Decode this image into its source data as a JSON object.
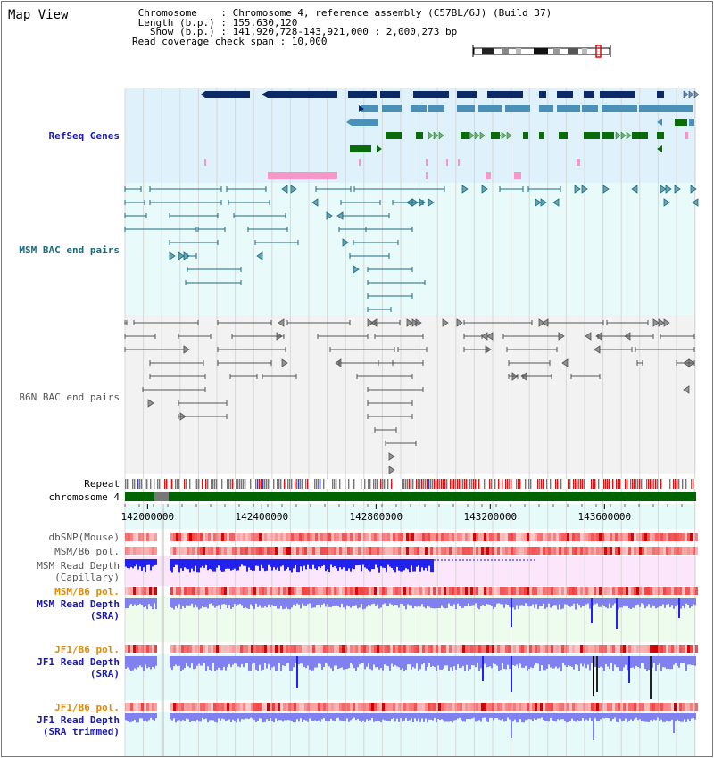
{
  "page": {
    "title": "Map View"
  },
  "header": {
    "lines": [
      " Chromosome    : Chromosome 4, reference assembly (C57BL/6J) (Build 37)",
      " Length (b.p.) : 155,630,120",
      "   Show (b.p.) : 141,920,728-143,921,000 : 2,000,273 bp",
      "Read coverage check span : 10,000"
    ]
  },
  "tracks": {
    "refseq": {
      "label": "RefSeq Genes",
      "color": "#1a1aa6"
    },
    "msm_bac": {
      "label": "MSM BAC end pairs",
      "color": "#1a6b80"
    },
    "b6n_bac": {
      "label": "B6N BAC end pairs",
      "color": "#555555"
    },
    "repeat": {
      "label": "Repeat",
      "color": "#000000"
    },
    "chromosome": {
      "label": "chromosome 4",
      "color": "#000000"
    },
    "dbsnp": {
      "label": "dbSNP(Mouse)",
      "color": "#555555"
    },
    "msm_b6_pol_1": {
      "label": "MSM/B6 pol.",
      "color": "#555555"
    },
    "msm_depth_cap": {
      "label": "MSM Read Depth\n(Capillary)",
      "color": "#555555"
    },
    "msm_b6_pol_2": {
      "label": "MSM/B6 pol.",
      "color": "#e08a00"
    },
    "msm_depth_sra": {
      "label": "MSM Read Depth\n(SRA)",
      "color": "#1a1aa6"
    },
    "jf1_b6_pol_1": {
      "label": "JF1/B6 pol.",
      "color": "#e08a00"
    },
    "jf1_depth_sra": {
      "label": "JF1 Read Depth\n(SRA)",
      "color": "#1a1aa6"
    },
    "jf1_b6_pol_2": {
      "label": "JF1/B6 pol.",
      "color": "#e08a00"
    },
    "jf1_depth_trim": {
      "label": "JF1 Read Depth\n(SRA trimmed)",
      "color": "#1a1aa6"
    }
  },
  "ruler": {
    "ticks": [
      "142000000",
      "142400000",
      "142800000",
      "143200000",
      "143600000"
    ],
    "tick_values": [
      142000000,
      142400000,
      142800000,
      143200000,
      143600000
    ],
    "start": 141920728,
    "end": 143921000
  },
  "colors": {
    "refseq_bg": "#dff1fb",
    "msm_bg": "#e8fafa",
    "b6n_bg": "#f2f2f2",
    "gene_navy": "#0b2a66",
    "gene_steel": "#4a90b8",
    "gene_green": "#0a6b0a",
    "gene_pink": "#f598c8",
    "msm_pair": "#1a6b80",
    "b6n_pair": "#555555",
    "chrom_green": "#006400",
    "depth_blue": "#2222ee",
    "depth_light": "#8080ee",
    "snp_red": "#ee3333"
  }
}
